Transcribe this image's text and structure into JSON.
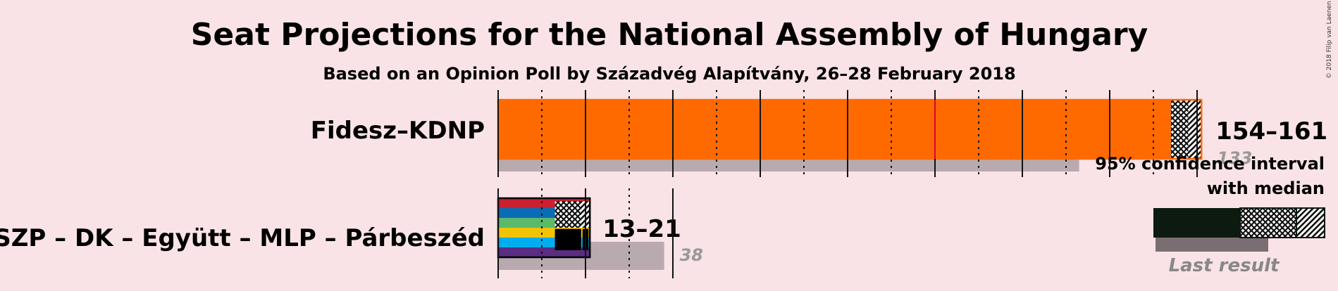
{
  "title": "Seat Projections for the National Assembly of Hungary",
  "subtitle": "Based on an Opinion Poll by Századvég Alapítvány, 26–28 February 2018",
  "copyright": "© 2018 Filip van Laenen",
  "colors": {
    "background": "#f9e3e6",
    "fidesz": "#ff6a00",
    "last_result_bar": "#b8aaae",
    "majority_line": "#e0003c",
    "legend_black": "#0c1a10",
    "legend_last": "#7a6e72"
  },
  "legend": {
    "ci_line1": "95% confidence interval",
    "ci_line2": "with median",
    "last_result": "Last result"
  },
  "chart_data": {
    "type": "bar",
    "orientation": "horizontal",
    "xlim": [
      0,
      161
    ],
    "x_gridlines_major": [
      0,
      20,
      40,
      60,
      80,
      100,
      120,
      140,
      160
    ],
    "x_gridlines_minor": [
      10,
      30,
      50,
      70,
      90,
      110,
      130,
      150
    ],
    "majority_line": 100,
    "categories": [
      "Fidesz–KDNP",
      "MSZP – DK – Együtt – MLP – Párbeszéd"
    ],
    "series": [
      {
        "name": "Fidesz–KDNP",
        "ci_low": 154,
        "median": 158,
        "ci_high": 161,
        "range_label": "154–161",
        "last_result": 133,
        "last_result_label": "133",
        "colors": [
          "#ff6a00"
        ]
      },
      {
        "name": "MSZP – DK – Együtt – MLP – Párbeszéd",
        "ci_low": 13,
        "median": 19,
        "ci_high": 21,
        "range_label": "13–21",
        "last_result": 38,
        "last_result_label": "38",
        "colors": [
          "#cc1f2f",
          "#0a6cb5",
          "#5ab96a",
          "#f2c300",
          "#00aeef",
          "#5a2d82"
        ]
      }
    ]
  }
}
